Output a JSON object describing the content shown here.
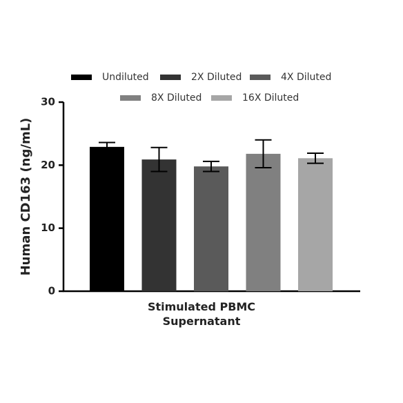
{
  "chart_data": {
    "type": "bar",
    "ylabel": "Human CD163 (ng/mL)",
    "categories": [
      "Stimulated PBMC Supernatant"
    ],
    "series": [
      {
        "name": "Undiluted",
        "color": "#000000",
        "values": [
          22.9
        ],
        "errors": [
          0.7
        ]
      },
      {
        "name": "2X Diluted",
        "color": "#333333",
        "values": [
          20.9
        ],
        "errors": [
          1.9
        ]
      },
      {
        "name": "4X Diluted",
        "color": "#5a5a5a",
        "values": [
          19.8
        ],
        "errors": [
          0.8
        ]
      },
      {
        "name": "8X Diluted",
        "color": "#808080",
        "values": [
          21.8
        ],
        "errors": [
          2.2
        ]
      },
      {
        "name": "16X Diluted",
        "color": "#a6a6a6",
        "values": [
          21.1
        ],
        "errors": [
          0.8
        ]
      }
    ],
    "ylim": [
      0,
      30
    ],
    "yticks": [
      0,
      10,
      20,
      30
    ],
    "legend": "top"
  }
}
